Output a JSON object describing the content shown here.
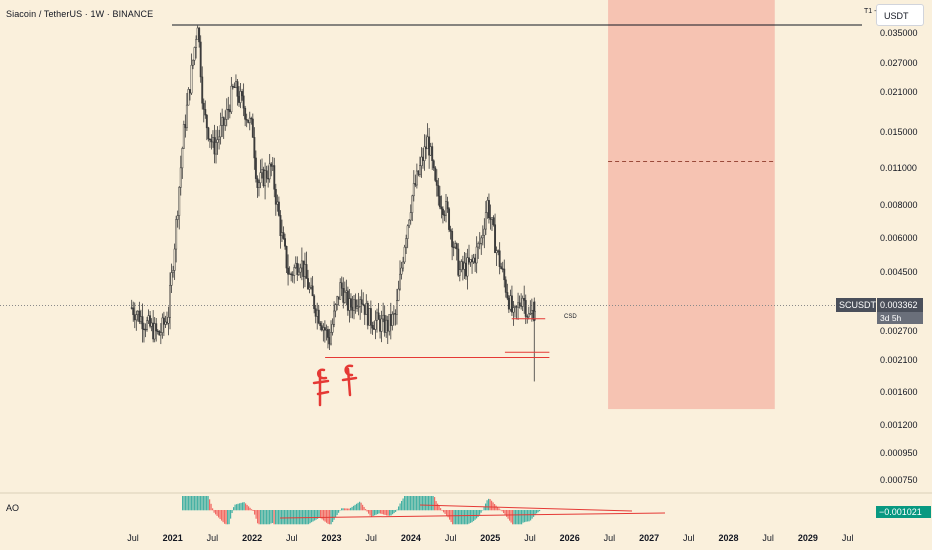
{
  "header": {
    "title": "Siacoin / TetherUS · 1W · BINANCE",
    "currency_button": "USDT"
  },
  "annotations": {
    "t1_label": "T1 -",
    "csd_label": "CSD"
  },
  "price_badge": {
    "symbol": "SCUSDT",
    "price": "0.003362",
    "countdown": "3d 5h"
  },
  "indicator": {
    "name": "AO",
    "value": "−0.001021"
  },
  "colors": {
    "background": "#faf0dc",
    "candle": "#3a3a3a",
    "target_zone": "#f5b8a8",
    "level_line": "#e53935",
    "ao_up": "#26a69a",
    "ao_down": "#ef5350"
  },
  "chart_data": {
    "type": "candlestick",
    "title": "Siacoin / TetherUS · 1W · BINANCE",
    "y_scale": "log",
    "y_ticks": [
      "0.035000",
      "0.027000",
      "0.021000",
      "0.015000",
      "0.011000",
      "0.008000",
      "0.006000",
      "0.004500",
      "0.003362",
      "0.002700",
      "0.002100",
      "0.001600",
      "0.001200",
      "0.000950",
      "0.000750"
    ],
    "x_ticks": [
      {
        "label": "Jul",
        "year": false
      },
      {
        "label": "2021",
        "year": true
      },
      {
        "label": "Jul",
        "year": false
      },
      {
        "label": "2022",
        "year": true
      },
      {
        "label": "Jul",
        "year": false
      },
      {
        "label": "2023",
        "year": true
      },
      {
        "label": "Jul",
        "year": false
      },
      {
        "label": "2024",
        "year": true
      },
      {
        "label": "Jul",
        "year": false
      },
      {
        "label": "2025",
        "year": true
      },
      {
        "label": "Jul",
        "year": false
      },
      {
        "label": "2026",
        "year": true
      },
      {
        "label": "Jul",
        "year": false
      },
      {
        "label": "2027",
        "year": true
      },
      {
        "label": "Jul",
        "year": false
      },
      {
        "label": "2028",
        "year": true
      },
      {
        "label": "Jul",
        "year": false
      },
      {
        "label": "2029",
        "year": true
      },
      {
        "label": "Jul",
        "year": false
      }
    ],
    "price_path": [
      [
        "2020-07-01",
        0.0033
      ],
      [
        "2020-09-01",
        0.0029
      ],
      [
        "2020-11-01",
        0.0026
      ],
      [
        "2020-12-15",
        0.0031
      ],
      [
        "2021-01-15",
        0.006
      ],
      [
        "2021-02-20",
        0.014
      ],
      [
        "2021-04-10",
        0.029
      ],
      [
        "2021-04-28",
        0.039
      ],
      [
        "2021-05-25",
        0.0175
      ],
      [
        "2021-07-10",
        0.013
      ],
      [
        "2021-09-01",
        0.0165
      ],
      [
        "2021-10-10",
        0.022
      ],
      [
        "2021-11-20",
        0.019
      ],
      [
        "2022-01-05",
        0.015
      ],
      [
        "2022-01-25",
        0.0095
      ],
      [
        "2022-04-01",
        0.011
      ],
      [
        "2022-05-15",
        0.0062
      ],
      [
        "2022-06-20",
        0.0043
      ],
      [
        "2022-08-10",
        0.005
      ],
      [
        "2022-10-01",
        0.0036
      ],
      [
        "2022-12-20",
        0.0025
      ],
      [
        "2023-02-10",
        0.004
      ],
      [
        "2023-03-20",
        0.0033
      ],
      [
        "2023-05-10",
        0.0037
      ],
      [
        "2023-06-20",
        0.003
      ],
      [
        "2023-09-10",
        0.0028
      ],
      [
        "2023-10-20",
        0.0031
      ],
      [
        "2023-12-01",
        0.006
      ],
      [
        "2024-01-01",
        0.0085
      ],
      [
        "2024-03-15",
        0.014
      ],
      [
        "2024-04-20",
        0.009
      ],
      [
        "2024-06-10",
        0.0075
      ],
      [
        "2024-08-05",
        0.0045
      ],
      [
        "2024-10-01",
        0.0048
      ],
      [
        "2024-11-15",
        0.006
      ],
      [
        "2024-12-10",
        0.0082
      ],
      [
        "2025-01-20",
        0.0055
      ],
      [
        "2025-03-10",
        0.0038
      ],
      [
        "2025-04-10",
        0.003
      ],
      [
        "2025-05-20",
        0.0037
      ],
      [
        "2025-06-20",
        0.003
      ],
      [
        "2025-07-20",
        0.0034
      ]
    ],
    "horizontal_levels": [
      {
        "name": "T1",
        "price": 0.0375
      },
      {
        "name": "CSD",
        "price": 0.003
      },
      {
        "name": "support-1",
        "price": 0.00225
      },
      {
        "name": "support-2",
        "price": 0.00215
      }
    ],
    "target_zone": {
      "x_start": "2026-06-15",
      "x_end": "2028-07-15",
      "y_top_price": 0.055,
      "y_bottom_price": 0.00138,
      "mid_price": 0.0116
    },
    "ao_indicator": {
      "name": "AO",
      "last_value": -0.001021
    }
  }
}
